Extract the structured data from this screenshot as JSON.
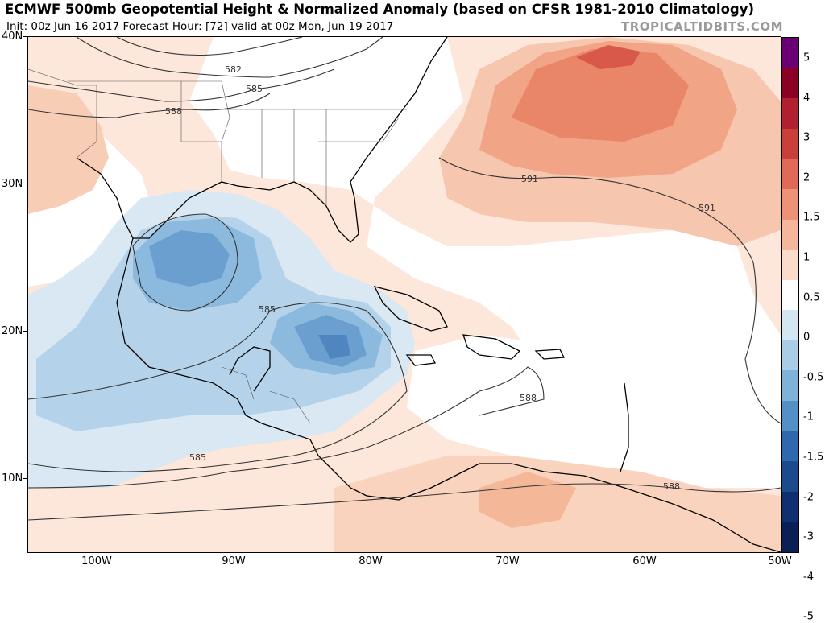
{
  "header": {
    "title": "ECMWF 500mb Geopotential Height & Normalized Anomaly (based on CFSR 1981-2010 Climatology)",
    "subtitle": "Init: 00z Jun 16 2017   Forecast Hour: [72]   valid at 00z Mon, Jun 19 2017",
    "brand": "TROPICALTIDBITS.COM"
  },
  "map": {
    "latitude_labels": [
      "40N",
      "30N",
      "20N",
      "10N"
    ],
    "longitude_labels": [
      "100W",
      "90W",
      "80W",
      "70W",
      "60W",
      "50W"
    ],
    "contour_labels": [
      "582",
      "585",
      "588",
      "591",
      "591",
      "585",
      "588",
      "585",
      "588"
    ]
  },
  "colorbar": {
    "labels": [
      "5",
      "4",
      "3",
      "2",
      "1.5",
      "1",
      "0.5",
      "0",
      "-0.5",
      "-1",
      "-1.5",
      "-2",
      "-3",
      "-4",
      "-5"
    ],
    "colors": [
      "#6a0073",
      "#8b0025",
      "#b0202e",
      "#c9403a",
      "#de6a57",
      "#ec9277",
      "#f5b79c",
      "#fbdccb",
      "#ffffff",
      "#d4e6f2",
      "#a9cde6",
      "#7fb2d9",
      "#548fc6",
      "#3068ad",
      "#1b4b8c",
      "#0f3070",
      "#0a1f55"
    ]
  }
}
